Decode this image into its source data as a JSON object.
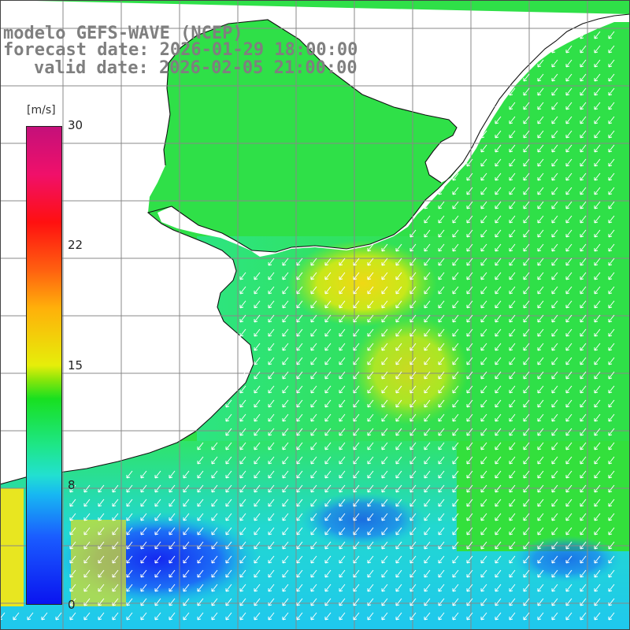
{
  "title": {
    "line1": "modelo GEFS-WAVE (NCEP)",
    "line2": "forecast date: 2026-01-29 18:00:00",
    "line3": "valid date: 2026-02-05 21:00:00"
  },
  "colorbar": {
    "unit": "[m/s]",
    "ticks": [
      "30",
      "22",
      "15",
      "8",
      "0"
    ]
  },
  "colors": {
    "land": "#ffffff",
    "coast": "#111111",
    "grid": "#888888",
    "arrows": "#ffffff",
    "title_text": "#7f7f7f"
  },
  "map": {
    "variable": "wind speed",
    "arrow_direction": "toward southwest"
  }
}
